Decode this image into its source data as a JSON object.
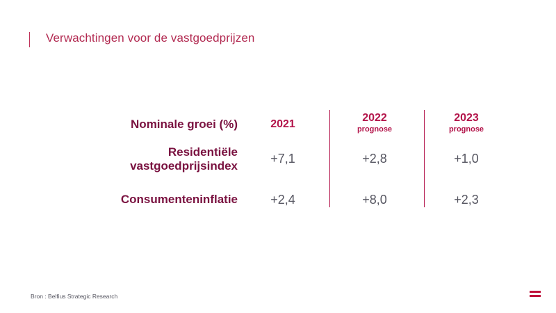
{
  "slide": {
    "title": "Verwachtingen voor de vastgoedprijzen",
    "source": "Bron : Belfius Strategic Research"
  },
  "table": {
    "header_label": "Nominale groei (%)",
    "columns": [
      {
        "year": "2021",
        "sub": ""
      },
      {
        "year": "2022",
        "sub": "prognose"
      },
      {
        "year": "2023",
        "sub": "prognose"
      }
    ],
    "rows": [
      {
        "label_line1": "Residentiële",
        "label_line2": "vastgoedprijsindex",
        "values": [
          "+7,1",
          "+2,8",
          "+1,0"
        ]
      },
      {
        "label_line1": "Consumenteninflatie",
        "values": [
          "+2,4",
          "+8,0",
          "+2,3"
        ]
      }
    ]
  },
  "colors": {
    "accent": "#b3144a",
    "label": "#7a1240",
    "value": "#555560",
    "logo": "#c0143c"
  },
  "icons": [
    "belfius-logo-icon"
  ]
}
